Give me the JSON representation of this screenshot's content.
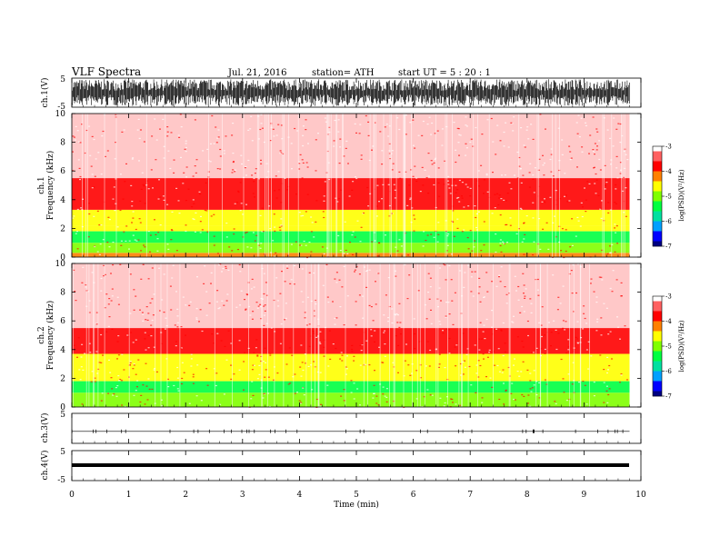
{
  "header": {
    "title": "VLF  Spectra",
    "date": "Jul.  21, 2016",
    "station": "station= ATH",
    "start": "start  UT  =   5  : 20 : 1"
  },
  "chart_data": [
    {
      "type": "line",
      "panel": "ch1-waveform",
      "ylabel": "ch.1(V)",
      "ylim": [
        -5,
        5
      ],
      "yticks": [
        "5",
        "-5"
      ],
      "signal": "dense broadband noise spanning approximately -5 to 5 V for the full 0–9.8 min interval"
    },
    {
      "type": "heatmap",
      "panel": "ch1-spectrogram",
      "ylabel": "ch.1\nFrequency  (kHz)",
      "ylabel_lines": [
        "ch.1",
        "Frequency  (kHz)"
      ],
      "ylim": [
        0,
        10
      ],
      "yticks": [
        "0",
        "2",
        "4",
        "6",
        "8",
        "10"
      ],
      "bands": [
        {
          "from_khz": 0,
          "to_khz": 0.3,
          "level": -4.3
        },
        {
          "from_khz": 0.3,
          "to_khz": 1.0,
          "level": -4.9
        },
        {
          "from_khz": 1.0,
          "to_khz": 1.8,
          "level": -5.3
        },
        {
          "from_khz": 1.8,
          "to_khz": 2.2,
          "level": -4.5
        },
        {
          "from_khz": 2.2,
          "to_khz": 3.3,
          "level": -4.8
        },
        {
          "from_khz": 3.3,
          "to_khz": 5.5,
          "level": -3.9
        },
        {
          "from_khz": 5.5,
          "to_khz": 10,
          "level": -3.4
        }
      ],
      "colorbar": {
        "label": "log(PSD)(V²/Hz)",
        "min": -7,
        "max": -3,
        "ticks": [
          "-3",
          "-4",
          "-5",
          "-6",
          "-7"
        ]
      }
    },
    {
      "type": "heatmap",
      "panel": "ch2-spectrogram",
      "ylabel": "ch.2\nFrequency  (kHz)",
      "ylabel_lines": [
        "ch.2",
        "Frequency  (kHz)"
      ],
      "ylim": [
        0,
        10
      ],
      "yticks": [
        "0",
        "2",
        "4",
        "6",
        "8",
        "10"
      ],
      "bands": [
        {
          "from_khz": 0,
          "to_khz": 1.0,
          "level": -4.9
        },
        {
          "from_khz": 1.0,
          "to_khz": 1.8,
          "level": -5.4
        },
        {
          "from_khz": 1.8,
          "to_khz": 3.7,
          "level": -4.6
        },
        {
          "from_khz": 3.7,
          "to_khz": 5.5,
          "level": -3.9
        },
        {
          "from_khz": 5.5,
          "to_khz": 10,
          "level": -3.4
        }
      ],
      "colorbar": {
        "label": "log(PSD)(V²/Hz)",
        "min": -7,
        "max": -3,
        "ticks": [
          "-3",
          "-4",
          "-5",
          "-6",
          "-7"
        ]
      }
    },
    {
      "type": "line",
      "panel": "ch3-waveform",
      "ylabel": "ch.3(V)",
      "ylim": [
        -5,
        5
      ],
      "yticks": [
        "5"
      ],
      "signal": "near-flat trace at about -1 V with small spikes"
    },
    {
      "type": "line",
      "panel": "ch4-waveform",
      "ylabel": "ch.4(V)",
      "ylim": [
        -5,
        5
      ],
      "yticks": [
        "5",
        "-5"
      ],
      "signal": "thick flat trace at about 0 V"
    }
  ],
  "xaxis": {
    "label": "Time  (min)",
    "xlim": [
      0,
      10
    ],
    "ticks": [
      "0",
      "1",
      "2",
      "3",
      "4",
      "5",
      "6",
      "7",
      "8",
      "9",
      "10"
    ],
    "data_end_min": 9.8
  },
  "colors": {
    "scale": [
      "#000080",
      "#0000ff",
      "#00a0ff",
      "#00e0a0",
      "#00ff40",
      "#80ff00",
      "#ffff00",
      "#ff8000",
      "#ff0000",
      "#ff6060",
      "#ffffff"
    ]
  }
}
